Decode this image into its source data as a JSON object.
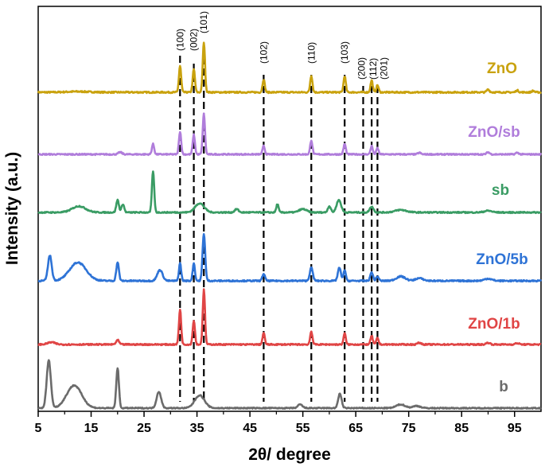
{
  "chart_data": {
    "type": "line",
    "xlabel": "2θ/ degree",
    "ylabel": "Intensity (a.u.)",
    "xlim": [
      5,
      100
    ],
    "x_ticks": [
      "5",
      "15",
      "25",
      "35",
      "45",
      "55",
      "65",
      "75",
      "85",
      "95"
    ],
    "y_ticks_shown": false,
    "legend": "labels beside each curve (right side)",
    "grid": false,
    "peak_indices": [
      {
        "label": "(100)",
        "x": 31.8
      },
      {
        "label": "(002)",
        "x": 34.4
      },
      {
        "label": "(101)",
        "x": 36.3
      },
      {
        "label": "(102)",
        "x": 47.6
      },
      {
        "label": "(110)",
        "x": 56.6
      },
      {
        "label": "(103)",
        "x": 62.9
      },
      {
        "label": "(200)",
        "x": 66.4
      },
      {
        "label": "(112)",
        "x": 68.0
      },
      {
        "label": "(201)",
        "x": 69.1
      }
    ],
    "series": [
      {
        "name": "ZnO",
        "color": "#C9A20E",
        "baseline": 0.1,
        "peaks": [
          [
            12.5,
            0.015,
            3.0
          ],
          [
            31.8,
            0.55,
            0.3
          ],
          [
            34.4,
            0.48,
            0.3
          ],
          [
            36.3,
            1.05,
            0.3
          ],
          [
            47.6,
            0.27,
            0.3
          ],
          [
            56.6,
            0.35,
            0.3
          ],
          [
            62.9,
            0.34,
            0.3
          ],
          [
            68.0,
            0.25,
            0.3
          ],
          [
            69.1,
            0.15,
            0.3
          ],
          [
            90.0,
            0.06,
            0.35
          ],
          [
            95.5,
            0.04,
            0.35
          ],
          [
            98.5,
            0.03,
            0.35
          ]
        ]
      },
      {
        "name": "ZnO/sb",
        "color": "#B07DDB",
        "baseline": 0.1,
        "peaks": [
          [
            20.5,
            0.05,
            0.5
          ],
          [
            26.7,
            0.25,
            0.3
          ],
          [
            31.8,
            0.55,
            0.3
          ],
          [
            34.4,
            0.47,
            0.3
          ],
          [
            36.3,
            0.98,
            0.3
          ],
          [
            47.6,
            0.2,
            0.3
          ],
          [
            56.6,
            0.34,
            0.3
          ],
          [
            62.9,
            0.25,
            0.3
          ],
          [
            68.0,
            0.2,
            0.3
          ],
          [
            69.1,
            0.15,
            0.3
          ],
          [
            77.0,
            0.04,
            0.4
          ],
          [
            90.0,
            0.05,
            0.4
          ],
          [
            95.5,
            0.04,
            0.4
          ]
        ]
      },
      {
        "name": "sb",
        "color": "#3A9C64",
        "baseline": 0.1,
        "peaks": [
          [
            12.7,
            0.15,
            1.8
          ],
          [
            20.0,
            0.3,
            0.35
          ],
          [
            21.0,
            0.2,
            0.35
          ],
          [
            26.7,
            1.0,
            0.3
          ],
          [
            35.5,
            0.22,
            1.2
          ],
          [
            42.5,
            0.08,
            0.5
          ],
          [
            50.2,
            0.2,
            0.3
          ],
          [
            55.0,
            0.08,
            1.0
          ],
          [
            60.0,
            0.15,
            0.4
          ],
          [
            61.8,
            0.3,
            0.6
          ],
          [
            68.0,
            0.14,
            0.5
          ],
          [
            73.5,
            0.06,
            1.5
          ],
          [
            90.0,
            0.04,
            1.0
          ]
        ]
      },
      {
        "name": "ZnO/5b",
        "color": "#2E73D6",
        "baseline": 0.1,
        "peaks": [
          [
            7.2,
            0.58,
            0.5
          ],
          [
            12.5,
            0.42,
            2.2
          ],
          [
            20.0,
            0.42,
            0.35
          ],
          [
            28.0,
            0.25,
            0.7
          ],
          [
            31.8,
            0.4,
            0.3
          ],
          [
            34.4,
            0.4,
            0.3
          ],
          [
            36.3,
            1.08,
            0.35
          ],
          [
            47.6,
            0.16,
            0.35
          ],
          [
            56.6,
            0.3,
            0.4
          ],
          [
            61.9,
            0.3,
            0.4
          ],
          [
            62.9,
            0.25,
            0.3
          ],
          [
            68.0,
            0.2,
            0.35
          ],
          [
            69.1,
            0.1,
            0.35
          ],
          [
            73.5,
            0.1,
            1.2
          ],
          [
            77.0,
            0.06,
            1.0
          ],
          [
            90.0,
            0.05,
            1.0
          ]
        ]
      },
      {
        "name": "ZnO/1b",
        "color": "#E04545",
        "baseline": 0.1,
        "peaks": [
          [
            7.5,
            0.05,
            1.0
          ],
          [
            20.0,
            0.1,
            0.4
          ],
          [
            31.8,
            0.8,
            0.3
          ],
          [
            34.4,
            0.55,
            0.3
          ],
          [
            36.3,
            1.25,
            0.3
          ],
          [
            47.6,
            0.26,
            0.3
          ],
          [
            56.6,
            0.3,
            0.3
          ],
          [
            62.9,
            0.25,
            0.3
          ],
          [
            68.0,
            0.2,
            0.3
          ],
          [
            69.1,
            0.15,
            0.3
          ],
          [
            77.0,
            0.04,
            0.5
          ],
          [
            90.0,
            0.04,
            0.5
          ],
          [
            95.5,
            0.03,
            0.5
          ]
        ]
      },
      {
        "name": "b",
        "color": "#6B6B6B",
        "baseline": 0.1,
        "peaks": [
          [
            7.0,
            1.3,
            0.55
          ],
          [
            11.8,
            0.62,
            2.0
          ],
          [
            20.0,
            1.1,
            0.35
          ],
          [
            27.8,
            0.45,
            0.6
          ],
          [
            35.5,
            0.35,
            1.3
          ],
          [
            54.5,
            0.1,
            0.6
          ],
          [
            62.0,
            0.4,
            0.45
          ],
          [
            73.5,
            0.1,
            1.2
          ],
          [
            76.5,
            0.06,
            1.0
          ]
        ]
      }
    ]
  }
}
